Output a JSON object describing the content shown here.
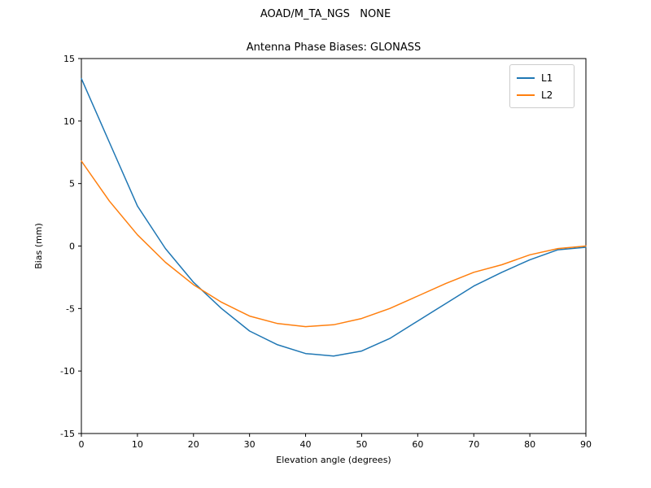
{
  "suptitle": "AOAD/M_TA_NGS   NONE",
  "chart_data": {
    "type": "line",
    "title": "Antenna Phase Biases: GLONASS",
    "xlabel": "Elevation angle (degrees)",
    "ylabel": "Bias (mm)",
    "xlim": [
      0,
      90
    ],
    "ylim": [
      -15,
      15
    ],
    "xticks": [
      0,
      10,
      20,
      30,
      40,
      50,
      60,
      70,
      80,
      90
    ],
    "yticks": [
      -15,
      -10,
      -5,
      0,
      5,
      10,
      15
    ],
    "grid": false,
    "legend_position": "upper right",
    "x": [
      0,
      5,
      10,
      15,
      20,
      25,
      30,
      35,
      40,
      45,
      50,
      55,
      60,
      65,
      70,
      75,
      80,
      85,
      90
    ],
    "series": [
      {
        "name": "L1",
        "color": "#1f77b4",
        "values": [
          13.4,
          8.3,
          3.2,
          -0.2,
          -2.9,
          -5.0,
          -6.8,
          -7.9,
          -8.6,
          -8.8,
          -8.4,
          -7.4,
          -6.0,
          -4.6,
          -3.2,
          -2.1,
          -1.1,
          -0.3,
          -0.1
        ]
      },
      {
        "name": "L2",
        "color": "#ff7f0e",
        "values": [
          6.8,
          3.6,
          0.9,
          -1.3,
          -3.1,
          -4.5,
          -5.6,
          -6.2,
          -6.45,
          -6.3,
          -5.8,
          -5.0,
          -4.0,
          -3.0,
          -2.1,
          -1.5,
          -0.7,
          -0.2,
          0.0
        ]
      }
    ]
  }
}
